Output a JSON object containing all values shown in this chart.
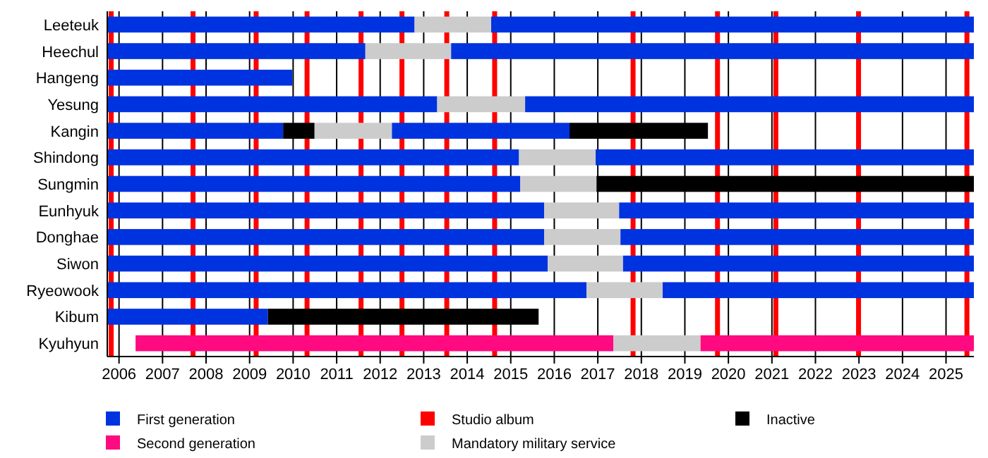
{
  "chart_data": {
    "type": "bar",
    "orientation": "horizontal",
    "categories": [
      "Leeteuk",
      "Heechul",
      "Hangeng",
      "Yesung",
      "Kangin",
      "Shindong",
      "Sungmin",
      "Eunhyuk",
      "Donghae",
      "Siwon",
      "Ryeowook",
      "Kibum",
      "Kyuhyun"
    ],
    "series": [
      {
        "name": "First generation",
        "color": "#0033e0",
        "base": [
          2005.73,
          2005.73,
          2005.73,
          2005.73,
          2005.73,
          2005.73,
          2005.73,
          2005.73,
          2005.73,
          2005.73,
          2005.73,
          2005.73,
          null
        ],
        "values": [
          7.06,
          5.93,
          4.25,
          7.58,
          4.04,
          9.46,
          9.49,
          10.04,
          10.04,
          10.12,
          11.01,
          3.69,
          null
        ]
      },
      {
        "name": "Second generation",
        "color": "#ff0a80",
        "base": [
          null,
          null,
          null,
          null,
          null,
          null,
          null,
          null,
          null,
          null,
          null,
          null,
          2006.38
        ],
        "values": [
          null,
          null,
          null,
          null,
          null,
          null,
          null,
          null,
          null,
          null,
          null,
          null,
          10.98
        ]
      },
      {
        "name": "Mandatory military service",
        "color": "#cccccc",
        "base": [
          2012.79,
          2011.66,
          null,
          2013.31,
          2010.49,
          2015.19,
          2015.22,
          2015.77,
          2015.77,
          2015.85,
          2016.74,
          null,
          2017.36
        ],
        "values": [
          1.76,
          1.97,
          null,
          2.02,
          1.78,
          1.76,
          1.75,
          1.72,
          1.75,
          1.73,
          1.75,
          null,
          2.0
        ]
      },
      {
        "name": "Inactive",
        "color": "#000000",
        "base": [
          null,
          null,
          null,
          null,
          2009.77,
          null,
          2016.97,
          null,
          null,
          null,
          null,
          2009.42,
          null
        ],
        "values": [
          null,
          null,
          null,
          null,
          0.72,
          null,
          8.67,
          null,
          null,
          null,
          null,
          6.22,
          null
        ]
      },
      {
        "color": "#0033e0",
        "base": [
          2014.55,
          2013.63,
          null,
          2015.33,
          2012.27,
          2016.95,
          null,
          2017.49,
          2017.52,
          2017.58,
          2018.49,
          null,
          null
        ],
        "values": [
          11.09,
          12.01,
          null,
          10.31,
          4.08,
          8.69,
          null,
          8.15,
          8.12,
          8.06,
          7.15,
          null,
          null
        ]
      },
      {
        "color": "#000000",
        "base": [
          null,
          null,
          null,
          null,
          2016.35,
          null,
          null,
          null,
          null,
          null,
          null,
          null,
          null
        ],
        "values": [
          null,
          null,
          null,
          null,
          3.18,
          null,
          null,
          null,
          null,
          null,
          null,
          null,
          null
        ]
      },
      {
        "color": "#ff0a80",
        "base": [
          null,
          null,
          null,
          null,
          null,
          null,
          null,
          null,
          null,
          null,
          null,
          null,
          2019.36
        ],
        "values": [
          null,
          null,
          null,
          null,
          null,
          null,
          null,
          null,
          null,
          null,
          null,
          null,
          6.28
        ]
      }
    ],
    "xlim": [
      2005.73,
      2025.64
    ],
    "xticks": [
      2006,
      2007,
      2008,
      2009,
      2010,
      2011,
      2012,
      2013,
      2014,
      2015,
      2016,
      2017,
      2018,
      2019,
      2020,
      2021,
      2022,
      2023,
      2024,
      2025
    ],
    "ref_lines": [
      {
        "axis": "x",
        "value": 2005.82,
        "label": "Studio album",
        "color": "#ff0000"
      },
      {
        "axis": "x",
        "value": 2007.7,
        "color": "#ff0000"
      },
      {
        "axis": "x",
        "value": 2009.15,
        "color": "#ff0000"
      },
      {
        "axis": "x",
        "value": 2010.32,
        "color": "#ff0000"
      },
      {
        "axis": "x",
        "value": 2011.56,
        "color": "#ff0000"
      },
      {
        "axis": "x",
        "value": 2012.5,
        "color": "#ff0000"
      },
      {
        "axis": "x",
        "value": 2013.53,
        "color": "#ff0000"
      },
      {
        "axis": "x",
        "value": 2014.63,
        "color": "#ff0000"
      },
      {
        "axis": "x",
        "value": 2017.81,
        "color": "#ff0000"
      },
      {
        "axis": "x",
        "value": 2019.75,
        "color": "#ff0000"
      },
      {
        "axis": "x",
        "value": 2021.09,
        "color": "#ff0000"
      },
      {
        "axis": "x",
        "value": 2022.99,
        "color": "#ff0000"
      },
      {
        "axis": "x",
        "value": 2025.48,
        "color": "#ff0000"
      }
    ],
    "grid": "x",
    "legend": "bottom"
  }
}
